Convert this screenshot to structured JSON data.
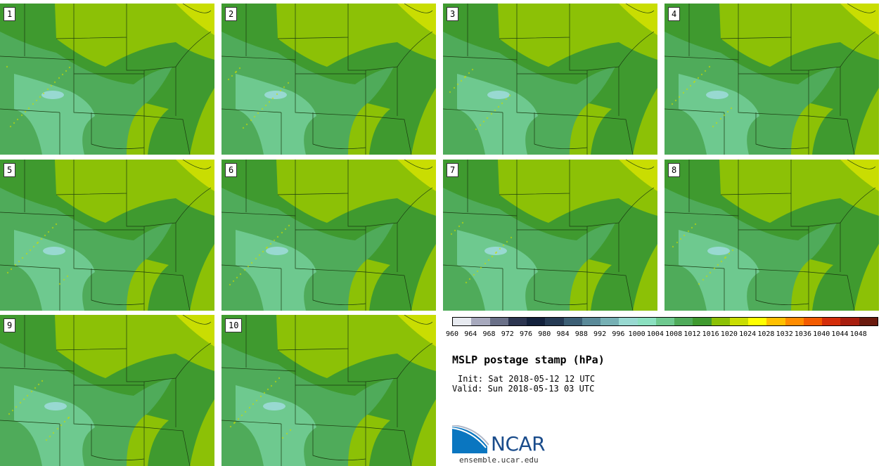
{
  "stamps": [
    {
      "label": "1"
    },
    {
      "label": "2"
    },
    {
      "label": "3"
    },
    {
      "label": "4"
    },
    {
      "label": "5"
    },
    {
      "label": "6"
    },
    {
      "label": "7"
    },
    {
      "label": "8"
    },
    {
      "label": "9"
    },
    {
      "label": "10"
    }
  ],
  "colorbar": {
    "labels": [
      "960",
      "964",
      "968",
      "972",
      "976",
      "980",
      "984",
      "988",
      "992",
      "996",
      "1000",
      "1004",
      "1008",
      "1012",
      "1016",
      "1020",
      "1024",
      "1028",
      "1032",
      "1036",
      "1040",
      "1044",
      "1048"
    ],
    "colors": [
      "#e7eaf0",
      "#a7a9bd",
      "#6a7088",
      "#2c3550",
      "#13213c",
      "#253a54",
      "#3c5f75",
      "#5a8a99",
      "#76b0b4",
      "#98d9d1",
      "#8be0c0",
      "#6ec98f",
      "#4fab5a",
      "#3f9a2f",
      "#8cc106",
      "#c9dd02",
      "#ffff00",
      "#ffc000",
      "#ff8c00",
      "#f35b00",
      "#d42e0a",
      "#a81e0e",
      "#6a1a0e"
    ]
  },
  "title": "MSLP postage stamp (hPa)",
  "init": "Init: Sat 2018-05-12 12 UTC",
  "valid": "Valid: Sun 2018-05-13 03 UTC",
  "logo": {
    "name": "NCAR",
    "url": "ensemble.ucar.edu"
  }
}
